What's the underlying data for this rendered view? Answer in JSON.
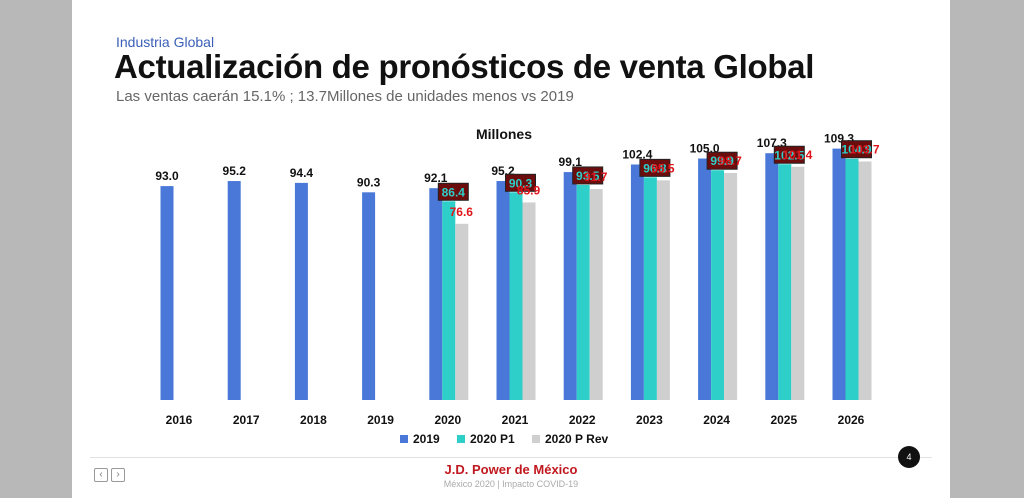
{
  "header": {
    "kicker": "Industria Global",
    "title": "Actualización de pronósticos de venta Global",
    "subtitle": "Las ventas caerán 15.1% ; 13.7Millones de unidades menos vs 2019"
  },
  "footer": {
    "brand": "J.D. Power de México",
    "sub": "México 2020 | Impacto COVID-19",
    "page": "4",
    "prev_icon": "chevron-left-icon",
    "next_icon": "chevron-right-icon"
  },
  "chart_data": {
    "type": "bar",
    "title": "Millones",
    "categories": [
      "2016",
      "2017",
      "2018",
      "2019",
      "2020",
      "2021",
      "2022",
      "2023",
      "2024",
      "2025",
      "2026"
    ],
    "ylim": [
      0,
      115
    ],
    "grid": false,
    "legend_position": "bottom",
    "series": [
      {
        "name": "2019",
        "color": "#4a78d8",
        "label_color": "#111111",
        "values": [
          93.0,
          95.2,
          94.4,
          90.3,
          92.1,
          95.2,
          99.1,
          102.4,
          105.0,
          107.3,
          109.3
        ]
      },
      {
        "name": "2020  P1",
        "color": "#2ecfc9",
        "label_color": "#2ecfc9",
        "label_bg": "#6b0d0d",
        "values": [
          null,
          null,
          null,
          null,
          86.4,
          90.3,
          93.5,
          96.8,
          99.9,
          102.5,
          104.9
        ]
      },
      {
        "name": "2020 P Rev",
        "color": "#cfcfcf",
        "label_color": "#e0141b",
        "values": [
          null,
          null,
          null,
          null,
          76.6,
          85.9,
          91.7,
          95.5,
          98.7,
          101.4,
          103.7
        ]
      }
    ]
  }
}
